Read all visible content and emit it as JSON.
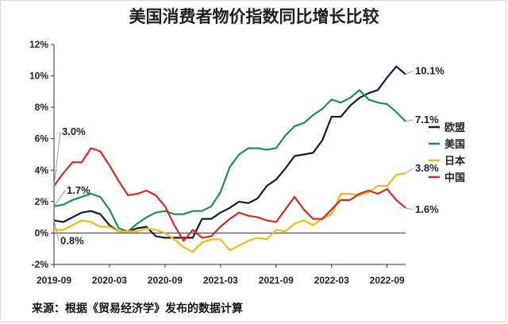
{
  "page": {
    "title": "美国消费者物价指数同比增长比较",
    "source": "来源：根据《贸易经济学》发布的数据计算"
  },
  "chart_data": {
    "type": "line",
    "title": "美国消费者物价指数同比增长比较",
    "xlabel": "",
    "ylabel": "",
    "ylim": [
      -2,
      12
    ],
    "yticks": [
      "-2%",
      "0%",
      "2%",
      "4%",
      "6%",
      "8%",
      "10%",
      "12%"
    ],
    "ytick_values": [
      -2,
      0,
      2,
      4,
      6,
      8,
      10,
      12
    ],
    "xticks": [
      "2019-09",
      "2020-03",
      "2020-09",
      "2021-03",
      "2021-09",
      "2022-03",
      "2022-09"
    ],
    "xtick_index": [
      0,
      6,
      12,
      18,
      24,
      30,
      36
    ],
    "x_months": [
      "2019-09",
      "2019-10",
      "2019-11",
      "2019-12",
      "2020-01",
      "2020-02",
      "2020-03",
      "2020-04",
      "2020-05",
      "2020-06",
      "2020-07",
      "2020-08",
      "2020-09",
      "2020-10",
      "2020-11",
      "2020-12",
      "2021-01",
      "2021-02",
      "2021-03",
      "2021-04",
      "2021-05",
      "2021-06",
      "2021-07",
      "2021-08",
      "2021-09",
      "2021-10",
      "2021-11",
      "2021-12",
      "2022-01",
      "2022-02",
      "2022-03",
      "2022-04",
      "2022-05",
      "2022-06",
      "2022-07",
      "2022-08",
      "2022-09",
      "2022-10",
      "2022-11"
    ],
    "grid": "none",
    "legend_position": "right",
    "series": [
      {
        "name": "欧盟",
        "color": "#0d1b3e",
        "start_label": "0.8%",
        "end_label": "10.1%",
        "values": [
          0.8,
          0.7,
          1.0,
          1.3,
          1.4,
          1.2,
          0.5,
          0.1,
          0.1,
          0.3,
          0.4,
          -0.2,
          -0.3,
          -0.3,
          -0.3,
          -0.3,
          0.9,
          0.9,
          1.3,
          1.6,
          2.0,
          1.9,
          2.2,
          3.0,
          3.4,
          4.1,
          4.9,
          5.0,
          5.1,
          5.9,
          7.4,
          7.4,
          8.1,
          8.6,
          8.9,
          9.1,
          9.9,
          10.6,
          10.1
        ]
      },
      {
        "name": "美国",
        "color": "#1a8f4e",
        "start_label": "1.7%",
        "end_label": "7.1%",
        "values": [
          1.7,
          1.8,
          2.1,
          2.3,
          2.5,
          2.3,
          1.5,
          0.3,
          0.1,
          0.6,
          1.0,
          1.3,
          1.4,
          1.2,
          1.2,
          1.4,
          1.4,
          1.7,
          2.6,
          4.2,
          5.0,
          5.4,
          5.4,
          5.3,
          5.4,
          6.2,
          6.8,
          7.0,
          7.5,
          7.9,
          8.5,
          8.3,
          8.6,
          9.1,
          8.5,
          8.3,
          8.2,
          7.7,
          7.1
        ]
      },
      {
        "name": "日本",
        "color": "#f2b816",
        "start_label": "",
        "end_label": "3.8%",
        "values": [
          0.2,
          0.2,
          0.5,
          0.8,
          0.7,
          0.4,
          0.4,
          0.1,
          0.1,
          0.1,
          0.3,
          0.2,
          0.0,
          -0.4,
          -0.9,
          -1.2,
          -0.6,
          -0.4,
          -0.4,
          -1.1,
          -0.8,
          -0.5,
          -0.3,
          -0.4,
          0.2,
          0.1,
          0.6,
          0.8,
          0.5,
          0.9,
          1.2,
          2.5,
          2.5,
          2.4,
          2.6,
          3.0,
          3.0,
          3.7,
          3.8
        ]
      },
      {
        "name": "中国",
        "color": "#d32a20",
        "start_label": "3.0%",
        "end_label": "1.6%",
        "values": [
          3.0,
          3.8,
          4.5,
          4.5,
          5.4,
          5.2,
          4.3,
          3.3,
          2.4,
          2.5,
          2.7,
          2.4,
          1.7,
          0.5,
          -0.5,
          0.2,
          -0.3,
          -0.2,
          0.4,
          0.9,
          1.3,
          1.1,
          1.0,
          0.8,
          0.7,
          1.5,
          2.3,
          1.5,
          0.9,
          0.9,
          1.5,
          2.1,
          2.1,
          2.5,
          2.7,
          2.5,
          2.8,
          2.1,
          1.6
        ]
      }
    ]
  }
}
